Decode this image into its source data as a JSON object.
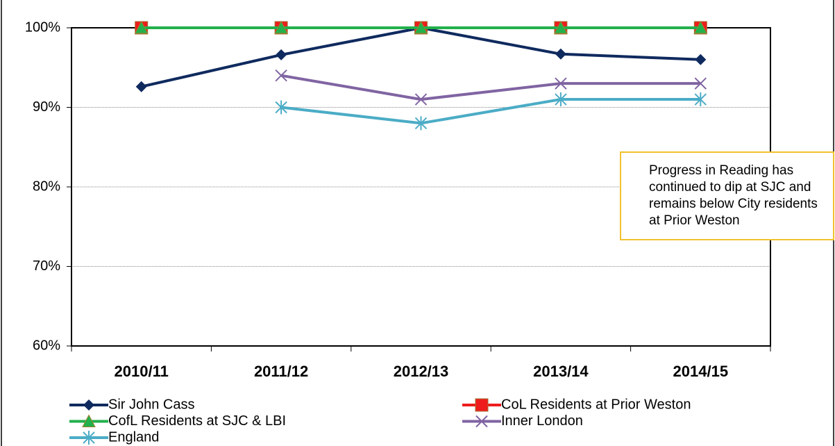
{
  "chart_data": {
    "type": "line",
    "categories": [
      "2010/11",
      "2011/12",
      "2012/13",
      "2013/14",
      "2014/15"
    ],
    "series": [
      {
        "name": "Sir John Cass",
        "color": "#0f2a5e",
        "marker": "diamond",
        "values": [
          92.6,
          96.6,
          100,
          96.7,
          96.0
        ]
      },
      {
        "name": "CoL Residents at Prior Weston",
        "color": "#ee1c1c",
        "marker": "square",
        "values": [
          100,
          100,
          100,
          100,
          100
        ]
      },
      {
        "name": "CofL Residents at SJC & LBI",
        "color": "#22b14c",
        "marker": "triangle",
        "values": [
          100,
          100,
          100,
          100,
          100
        ]
      },
      {
        "name": "Inner London",
        "color": "#8064a2",
        "marker": "x",
        "values": [
          null,
          94,
          91,
          93,
          93
        ]
      },
      {
        "name": "England",
        "color": "#4bacc6",
        "marker": "star",
        "values": [
          null,
          90,
          88,
          91,
          91
        ]
      }
    ],
    "ylim": [
      60,
      100
    ],
    "yticks": [
      {
        "value": 60,
        "label": "60%"
      },
      {
        "value": 70,
        "label": "70%"
      },
      {
        "value": 80,
        "label": "80%"
      },
      {
        "value": 90,
        "label": "90%"
      },
      {
        "value": 100,
        "label": "100%"
      }
    ],
    "grid": true,
    "legend": "bottom",
    "annotation": "Progress in Reading has continued to dip at SJC and remains below City residents at Prior Weston"
  }
}
